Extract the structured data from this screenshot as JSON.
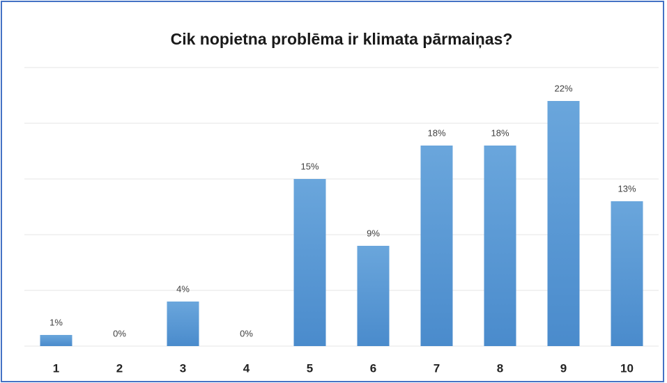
{
  "chart_data": {
    "type": "bar",
    "title": "Cik nopietna problēma ir klimata pārmaiņas?",
    "categories": [
      "1",
      "2",
      "3",
      "4",
      "5",
      "6",
      "7",
      "8",
      "9",
      "10"
    ],
    "values": [
      1,
      0,
      4,
      0,
      15,
      9,
      18,
      18,
      22,
      13
    ],
    "value_labels": [
      "1%",
      "0%",
      "4%",
      "0%",
      "15%",
      "9%",
      "18%",
      "18%",
      "22%",
      "13%"
    ],
    "color": "#5b9bd5",
    "ylim": [
      0,
      25
    ],
    "yticks": [
      0,
      5,
      10,
      15,
      20,
      25
    ],
    "grid": true
  }
}
